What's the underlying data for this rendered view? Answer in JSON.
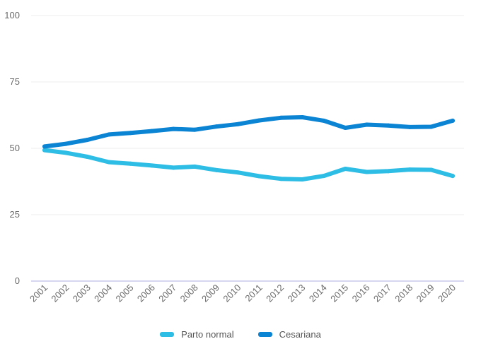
{
  "chart_data": {
    "type": "line",
    "title": "",
    "xlabel": "",
    "ylabel": "",
    "ylim": [
      0,
      100
    ],
    "yticks": [
      0,
      25,
      50,
      75,
      100
    ],
    "grid": true,
    "legend_position": "bottom",
    "x": [
      "2001",
      "2002",
      "2003",
      "2004",
      "2005",
      "2006",
      "2007",
      "2008",
      "2009",
      "2010",
      "2011",
      "2012",
      "2013",
      "2014",
      "2015",
      "2016",
      "2017",
      "2018",
      "2019",
      "2020"
    ],
    "series": [
      {
        "name": "Parto normal",
        "color": "#2ebde4",
        "values": [
          49.3,
          48.3,
          46.8,
          44.8,
          44.2,
          43.5,
          42.7,
          43.1,
          41.8,
          40.9,
          39.5,
          38.5,
          38.3,
          39.6,
          42.3,
          41.1,
          41.4,
          42.0,
          41.9,
          39.6
        ]
      },
      {
        "name": "Cesariana",
        "color": "#0b84d4",
        "values": [
          50.7,
          51.7,
          53.2,
          55.2,
          55.8,
          56.5,
          57.3,
          57.0,
          58.2,
          59.1,
          60.5,
          61.5,
          61.7,
          60.4,
          57.7,
          58.9,
          58.6,
          58.0,
          58.1,
          60.4
        ]
      }
    ]
  }
}
